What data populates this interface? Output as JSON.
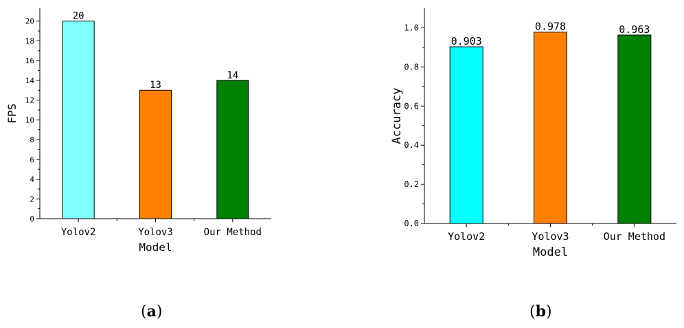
{
  "panels": [
    {
      "label_open": "(",
      "label_letter": "a",
      "label_close": ")"
    },
    {
      "label_open": "(",
      "label_letter": "b",
      "label_close": ")"
    }
  ],
  "chart_data": [
    {
      "type": "bar",
      "categories": [
        "Yolov2",
        "Yolov3",
        "Our Method"
      ],
      "values": [
        20,
        13,
        14
      ],
      "data_labels": [
        "20",
        "13",
        "14"
      ],
      "colors": [
        "#80ffff",
        "#ff8000",
        "#008000"
      ],
      "xlabel": "Model",
      "ylabel": "FPS",
      "ylim": [
        0,
        21.3
      ],
      "yticks": [
        0,
        2,
        4,
        6,
        8,
        10,
        12,
        14,
        16,
        18,
        20
      ],
      "ytick_labels": [
        "0",
        "2",
        "4",
        "6",
        "8",
        "10",
        "12",
        "14",
        "16",
        "18",
        "20"
      ],
      "grid": false,
      "legend": "none"
    },
    {
      "type": "bar",
      "categories": [
        "Yolov2",
        "Yolov3",
        "Our Method"
      ],
      "values": [
        0.903,
        0.978,
        0.963
      ],
      "data_labels": [
        "0.903",
        "0.978",
        "0.963"
      ],
      "colors": [
        "#00ffff",
        "#ff8000",
        "#008000"
      ],
      "xlabel": "Model",
      "ylabel": "Accuracy",
      "ylim": [
        0,
        1.1
      ],
      "yticks": [
        0,
        0.2,
        0.4,
        0.6,
        0.8,
        1.0
      ],
      "ytick_labels": [
        "0.0",
        "0.2",
        "0.4",
        "0.6",
        "0.8",
        "1.0"
      ],
      "grid": false,
      "legend": "none"
    }
  ]
}
